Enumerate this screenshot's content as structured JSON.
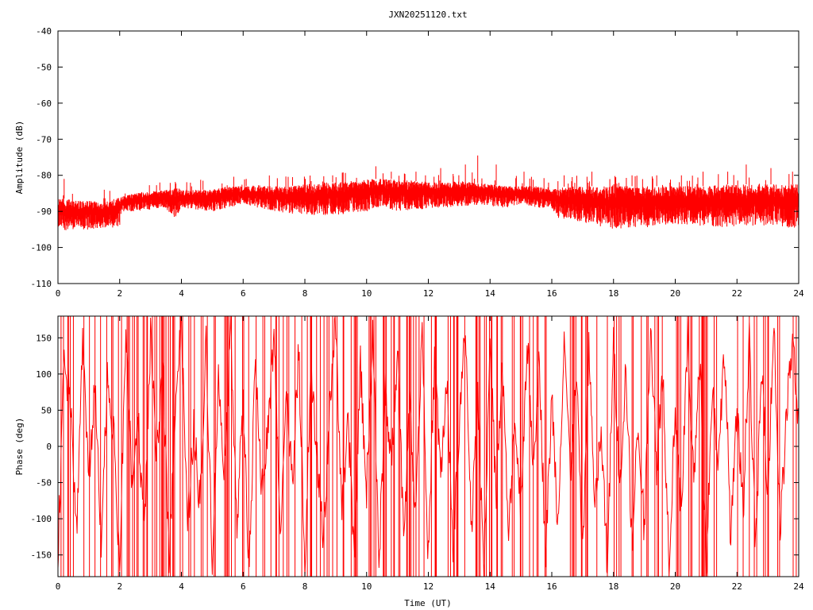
{
  "title": "JXN20251120.txt",
  "chart_data": [
    {
      "type": "line",
      "title": "JXN20251120.txt",
      "xlabel": "",
      "ylabel": "Amplitude (dB)",
      "xlim": [
        0,
        24
      ],
      "ylim": [
        -110,
        -40
      ],
      "xticks": [
        0,
        2,
        4,
        6,
        8,
        10,
        12,
        14,
        16,
        18,
        20,
        22,
        24
      ],
      "yticks": [
        -110,
        -100,
        -90,
        -80,
        -70,
        -60,
        -50,
        -40
      ],
      "grid": false,
      "series_color": "#ff0000",
      "envelope": {
        "x": [
          0,
          0.5,
          1,
          1.5,
          2,
          2.05,
          2.5,
          3,
          3.5,
          3.7,
          3.9,
          4,
          4.5,
          5,
          5.5,
          6,
          6.5,
          7,
          7.5,
          8,
          8.5,
          9,
          9.5,
          10,
          10.5,
          11,
          11.5,
          12,
          12.5,
          13,
          13.5,
          14,
          14.5,
          15,
          15.5,
          16,
          16.2,
          16.5,
          17,
          17.5,
          18,
          18.5,
          19,
          19.5,
          20,
          20.5,
          21,
          21.5,
          22,
          22.5,
          23,
          23.5,
          24
        ],
        "lower": [
          -95,
          -95.5,
          -95,
          -94.5,
          -94.5,
          -90,
          -90,
          -89.5,
          -89,
          -92,
          -91,
          -89,
          -89.5,
          -90,
          -89,
          -88,
          -89,
          -90,
          -91,
          -91,
          -91,
          -91,
          -90.5,
          -90,
          -89,
          -90,
          -90,
          -89,
          -89,
          -88.5,
          -88.5,
          -88.5,
          -89,
          -88,
          -89,
          -89,
          -92,
          -92,
          -93,
          -94,
          -95,
          -94.5,
          -94.5,
          -94,
          -93.5,
          -94,
          -94,
          -94.5,
          -94,
          -94,
          -94,
          -94.5,
          -94.5
        ],
        "upper": [
          -86,
          -87,
          -87,
          -87.5,
          -86,
          -86,
          -85,
          -84.5,
          -84,
          -84,
          -83.5,
          -84,
          -84,
          -84,
          -83,
          -83,
          -83,
          -83,
          -83,
          -82.5,
          -82,
          -82,
          -81.5,
          -81,
          -81,
          -81,
          -81.5,
          -82,
          -82,
          -81.5,
          -82,
          -82.5,
          -83,
          -83,
          -83,
          -84,
          -83.5,
          -83,
          -83,
          -83,
          -83,
          -83,
          -83,
          -83,
          -83,
          -83,
          -83,
          -82.5,
          -82.5,
          -82.5,
          -82.5,
          -82.5,
          -82.5
        ],
        "spikes": [
          [
            0.2,
            -81
          ],
          [
            1.5,
            -84
          ],
          [
            3.3,
            -82
          ],
          [
            4.7,
            -81.5
          ],
          [
            6.1,
            -81
          ],
          [
            7.6,
            -80.5
          ],
          [
            8.9,
            -80
          ],
          [
            10.3,
            -77.5
          ],
          [
            10.8,
            -79
          ],
          [
            11.6,
            -79
          ],
          [
            12.4,
            -78
          ],
          [
            13.2,
            -77
          ],
          [
            13.6,
            -74.5
          ],
          [
            14.2,
            -77
          ],
          [
            15.1,
            -79
          ],
          [
            16.4,
            -80
          ],
          [
            17.3,
            -79
          ],
          [
            18.6,
            -80
          ],
          [
            19.4,
            -80
          ],
          [
            20.2,
            -80
          ],
          [
            20.9,
            -79
          ],
          [
            21.7,
            -79
          ],
          [
            22.3,
            -77
          ],
          [
            23.1,
            -78
          ],
          [
            23.8,
            -79
          ]
        ]
      }
    },
    {
      "type": "line",
      "xlabel": "Time (UT)",
      "ylabel": "Phase (deg)",
      "xlim": [
        0,
        24
      ],
      "ylim": [
        -180,
        180
      ],
      "xticks": [
        0,
        2,
        4,
        6,
        8,
        10,
        12,
        14,
        16,
        18,
        20,
        22,
        24
      ],
      "yticks": [
        -150,
        -100,
        -50,
        0,
        50,
        100,
        150
      ],
      "grid": false,
      "series_color": "#ff0000",
      "waypoints": {
        "x": [
          0,
          0.2,
          0.4,
          0.6,
          0.8,
          1.0,
          1.2,
          1.4,
          1.6,
          1.8,
          2.0,
          2.2,
          2.4,
          2.6,
          2.8,
          3.0,
          3.2,
          3.4,
          3.6,
          3.8,
          4.0,
          4.2,
          4.4,
          4.6,
          4.8,
          5.0,
          5.2,
          5.4,
          5.6,
          5.8,
          6.0,
          6.2,
          6.4,
          6.6,
          6.8,
          7.0,
          7.2,
          7.4,
          7.6,
          7.8,
          8.0,
          8.2,
          8.4,
          8.6,
          8.8,
          9.0,
          9.2,
          9.4,
          9.6,
          9.8,
          10.0,
          10.2,
          10.4,
          10.6,
          10.8,
          11.0,
          11.2,
          11.4,
          11.6,
          11.8,
          12.0,
          12.2,
          12.4,
          12.6,
          12.8,
          13.0,
          13.2,
          13.4,
          13.6,
          13.8,
          14.0,
          14.2,
          14.4,
          14.6,
          14.8,
          15.0,
          15.2,
          15.4,
          15.6,
          15.8,
          16.0,
          16.2,
          16.4,
          16.6,
          16.8,
          17.0,
          17.2,
          17.4,
          17.6,
          17.8,
          18.0,
          18.2,
          18.4,
          18.6,
          18.8,
          19.0,
          19.2,
          19.4,
          19.6,
          19.8,
          20.0,
          20.2,
          20.4,
          20.6,
          20.8,
          21.0,
          21.2,
          21.4,
          21.6,
          21.8,
          22.0,
          22.2,
          22.4,
          22.6,
          22.8,
          23.0,
          23.2,
          23.4,
          23.6,
          23.8,
          24.0
        ],
        "y": [
          -150,
          120,
          60,
          -120,
          150,
          -40,
          80,
          -140,
          100,
          20,
          -170,
          160,
          -60,
          40,
          -130,
          150,
          -20,
          110,
          -160,
          60,
          170,
          -120,
          30,
          -80,
          140,
          -150,
          90,
          -30,
          160,
          -100,
          50,
          -170,
          120,
          -60,
          20,
          150,
          -110,
          70,
          -40,
          130,
          -160,
          100,
          -20,
          -140,
          60,
          170,
          -90,
          30,
          -150,
          110,
          -60,
          160,
          -170,
          80,
          -30,
          140,
          -120,
          50,
          -90,
          170,
          -160,
          120,
          -40,
          90,
          -150,
          30,
          160,
          -110,
          60,
          -170,
          140,
          -70,
          110,
          -130,
          40,
          -90,
          150,
          -20,
          120,
          -160,
          70,
          -110,
          160,
          -40,
          90,
          -150,
          130,
          -80,
          20,
          -170,
          150,
          -60,
          110,
          -140,
          40,
          -120,
          170,
          -30,
          100,
          -160,
          60,
          -100,
          150,
          -50,
          120,
          -170,
          80,
          -20,
          140,
          -130,
          50,
          -90,
          160,
          -150,
          110,
          -60,
          170,
          -120,
          40,
          150,
          20
        ]
      }
    }
  ]
}
